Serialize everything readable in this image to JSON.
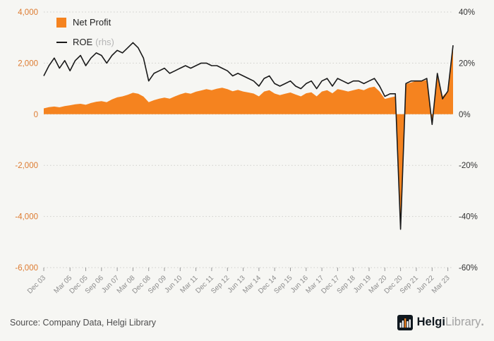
{
  "legend": {
    "net_profit_label": "Net Profit",
    "roe_label": "ROE",
    "roe_suffix": "(rhs)"
  },
  "footer": {
    "source": "Source: Company Data, Helgi Library",
    "brand_primary": "Helgi",
    "brand_secondary": "Library",
    "brand_dot": "."
  },
  "chart_data": {
    "type": "combo",
    "title": "",
    "subtitle": "",
    "grid": true,
    "legend_position": "top-left",
    "x_unit": "quarter",
    "x_tick_labels": [
      "Dec 03",
      "Mar 05",
      "Dec 05",
      "Sep 06",
      "Jun 07",
      "Mar 08",
      "Dec 08",
      "Sep 09",
      "Jun 10",
      "Mar 11",
      "Dec 11",
      "Sep 12",
      "Jun 13",
      "Mar 14",
      "Dec 14",
      "Sep 15",
      "Jun 16",
      "Mar 17",
      "Dec 17",
      "Sep 18",
      "Jun 19",
      "Mar 20",
      "Dec 20",
      "Sep 21",
      "Jun 22",
      "Mar 23"
    ],
    "x_tick_indices": [
      0,
      5,
      8,
      11,
      14,
      17,
      20,
      23,
      26,
      29,
      32,
      35,
      38,
      41,
      44,
      47,
      50,
      53,
      56,
      59,
      62,
      65,
      68,
      71,
      74,
      77
    ],
    "left_axis": {
      "min": -6000,
      "max": 4000,
      "step": 2000,
      "labels": [
        "4,000",
        "2,000",
        "0",
        "-2,000",
        "-4,000",
        "-6,000"
      ],
      "color": "#dd7a2f"
    },
    "right_axis": {
      "min": -60,
      "max": 40,
      "step": 20,
      "labels": [
        "40%",
        "20%",
        "0%",
        "-20%",
        "-40%",
        "-60%"
      ],
      "color": "#333333"
    },
    "series": [
      {
        "name": "Net Profit",
        "type": "area",
        "axis": "left",
        "color": "#f5831f",
        "values": [
          230,
          280,
          300,
          270,
          320,
          350,
          390,
          410,
          370,
          440,
          490,
          510,
          470,
          580,
          660,
          700,
          760,
          840,
          800,
          690,
          470,
          550,
          610,
          650,
          610,
          700,
          780,
          840,
          800,
          880,
          930,
          980,
          940,
          1000,
          1040,
          980,
          900,
          950,
          890,
          850,
          810,
          700,
          890,
          940,
          810,
          750,
          800,
          850,
          770,
          700,
          820,
          860,
          700,
          890,
          940,
          820,
          980,
          940,
          890,
          940,
          990,
          940,
          1040,
          1080,
          890,
          600,
          650,
          700,
          -4450,
          1180,
          1240,
          1300,
          1290,
          1340,
          -350,
          1480,
          700,
          900,
          2700
        ]
      },
      {
        "name": "ROE",
        "type": "line",
        "axis": "right",
        "color": "#1a1a1a",
        "values": [
          15,
          19,
          22,
          18,
          21,
          17,
          21,
          23,
          19,
          22,
          24,
          23,
          20,
          23,
          25,
          24,
          26,
          28,
          26,
          22,
          13,
          16,
          17,
          18,
          16,
          17,
          18,
          19,
          18,
          19,
          20,
          20,
          19,
          19,
          18,
          17,
          15,
          16,
          15,
          14,
          13,
          11,
          14,
          15,
          12,
          11,
          12,
          13,
          11,
          10,
          12,
          13,
          10,
          13,
          14,
          11,
          14,
          13,
          12,
          13,
          13,
          12,
          13,
          14,
          11,
          7,
          8,
          8,
          -45,
          12,
          13,
          13,
          13,
          14,
          -4,
          16,
          6,
          9,
          27
        ]
      }
    ],
    "legend": [
      {
        "label": "Net Profit",
        "swatch": "square",
        "color": "#f5831f"
      },
      {
        "label": "ROE",
        "suffix": "(rhs)",
        "swatch": "line",
        "color": "#1a1a1a"
      }
    ]
  }
}
